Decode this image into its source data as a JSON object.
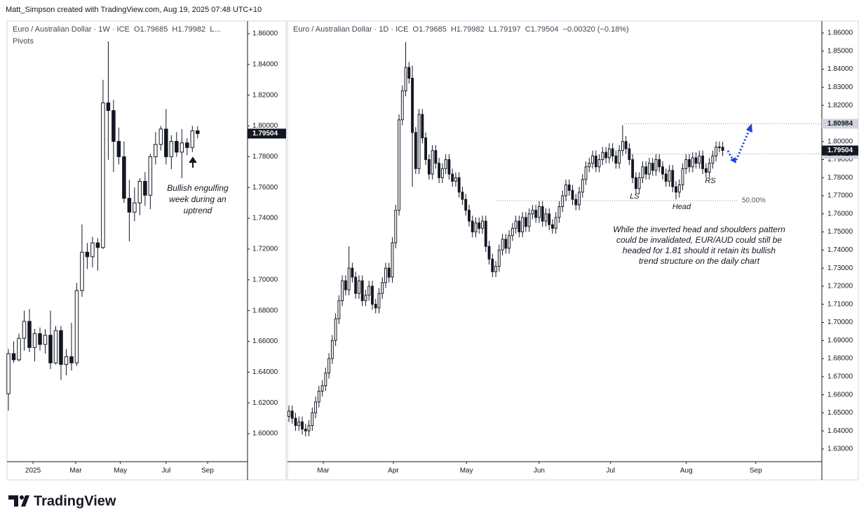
{
  "header": {
    "text": "Matt_Simpson created with TradingView.com, Aug 19, 2025 07:48 UTC+10"
  },
  "footer": {
    "brand": "TradingView"
  },
  "chart_data": [
    {
      "type": "candlestick",
      "title": "Euro / Australian Dollar · 1W · ICE  O1.79685  H1.79982  L...",
      "subtitle": "Pivots",
      "colors": {
        "up": "#ffffff",
        "down": "#131722",
        "wick": "#131722"
      },
      "xlim": [
        -0.27,
        45.5
      ],
      "xticks": [
        {
          "value": 4.67,
          "label": "2025"
        },
        {
          "value": 12.8,
          "label": "Mar"
        },
        {
          "value": 21.3,
          "label": "May"
        },
        {
          "value": 30,
          "label": "Jul"
        },
        {
          "value": 37.9,
          "label": "Sep"
        }
      ],
      "ylim": [
        1.5818,
        1.8682
      ],
      "yticks": [
        {
          "value": 1.6,
          "label": "1.60000"
        },
        {
          "value": 1.62,
          "label": "1.62000"
        },
        {
          "value": 1.64,
          "label": "1.64000"
        },
        {
          "value": 1.66,
          "label": "1.66000"
        },
        {
          "value": 1.68,
          "label": "1.68000"
        },
        {
          "value": 1.7,
          "label": "1.70000"
        },
        {
          "value": 1.72,
          "label": "1.72000"
        },
        {
          "value": 1.74,
          "label": "1.74000"
        },
        {
          "value": 1.76,
          "label": "1.76000"
        },
        {
          "value": 1.78,
          "label": "1.78000"
        },
        {
          "value": 1.8,
          "label": "1.80000"
        },
        {
          "value": 1.82,
          "label": "1.82000"
        },
        {
          "value": 1.84,
          "label": "1.84000"
        },
        {
          "value": 1.86,
          "label": "1.86000"
        }
      ],
      "open": [
        1.626,
        1.652,
        1.648,
        1.662,
        1.673,
        1.656,
        1.665,
        1.658,
        1.664,
        1.646,
        1.667,
        1.645,
        1.65,
        1.646,
        1.693,
        1.718,
        1.715,
        1.724,
        1.721,
        1.815,
        1.81,
        1.79,
        1.78,
        1.753,
        1.744,
        1.75,
        1.764,
        1.755,
        1.78,
        1.788,
        1.798,
        1.78,
        1.79,
        1.783,
        1.789,
        1.786,
        1.79685
      ],
      "high": [
        1.655,
        1.66,
        1.665,
        1.68,
        1.681,
        1.668,
        1.669,
        1.668,
        1.68,
        1.67,
        1.67,
        1.655,
        1.672,
        1.698,
        1.736,
        1.724,
        1.728,
        1.727,
        1.83,
        1.855,
        1.817,
        1.799,
        1.79,
        1.765,
        1.76,
        1.766,
        1.77,
        1.782,
        1.796,
        1.8,
        1.811,
        1.794,
        1.796,
        1.798,
        1.792,
        1.8,
        1.79982
      ],
      "low": [
        1.615,
        1.646,
        1.647,
        1.654,
        1.653,
        1.647,
        1.654,
        1.652,
        1.642,
        1.645,
        1.635,
        1.638,
        1.641,
        1.644,
        1.689,
        1.707,
        1.708,
        1.706,
        1.72,
        1.778,
        1.77,
        1.775,
        1.75,
        1.725,
        1.738,
        1.742,
        1.748,
        1.746,
        1.775,
        1.784,
        1.775,
        1.772,
        1.78,
        1.766,
        1.781,
        1.783,
        1.79197
      ],
      "close": [
        1.652,
        1.648,
        1.662,
        1.673,
        1.656,
        1.665,
        1.658,
        1.664,
        1.646,
        1.667,
        1.645,
        1.65,
        1.646,
        1.693,
        1.718,
        1.715,
        1.724,
        1.721,
        1.815,
        1.81,
        1.79,
        1.78,
        1.753,
        1.744,
        1.75,
        1.764,
        1.755,
        1.78,
        1.788,
        1.798,
        1.78,
        1.79,
        1.783,
        1.789,
        1.786,
        1.79685,
        1.79504
      ],
      "annotations": [
        "Bullish engulfing",
        "week during an",
        "uptrend"
      ]
    },
    {
      "type": "candlestick",
      "title": "Euro / Australian Dollar · 1D · ICE  O1.79685  H1.79982  L1.79197  C1.79504  −0.00320 (−0.18%)",
      "colors": {
        "up": "#ffffff",
        "down": "#131722",
        "wick": "#131722",
        "arrow": "#1e3fe0"
      },
      "xlim": [
        -0.42,
        159.7
      ],
      "xticks": [
        {
          "value": 10.3,
          "label": "Mar"
        },
        {
          "value": 31.3,
          "label": "Apr"
        },
        {
          "value": 53.2,
          "label": "May"
        },
        {
          "value": 75.0,
          "label": "Jun"
        },
        {
          "value": 96.4,
          "label": "Jul"
        },
        {
          "value": 119.1,
          "label": "Aug"
        },
        {
          "value": 139.9,
          "label": "Sep"
        }
      ],
      "ylim": [
        1.623,
        1.8666
      ],
      "yticks": [
        {
          "value": 1.63,
          "label": "1.63000"
        },
        {
          "value": 1.64,
          "label": "1.64000"
        },
        {
          "value": 1.65,
          "label": "1.65000"
        },
        {
          "value": 1.66,
          "label": "1.66000"
        },
        {
          "value": 1.67,
          "label": "1.67000"
        },
        {
          "value": 1.68,
          "label": "1.68000"
        },
        {
          "value": 1.69,
          "label": "1.69000"
        },
        {
          "value": 1.7,
          "label": "1.70000"
        },
        {
          "value": 1.71,
          "label": "1.71000"
        },
        {
          "value": 1.72,
          "label": "1.72000"
        },
        {
          "value": 1.73,
          "label": "1.73000"
        },
        {
          "value": 1.74,
          "label": "1.74000"
        },
        {
          "value": 1.75,
          "label": "1.75000"
        },
        {
          "value": 1.76,
          "label": "1.76000"
        },
        {
          "value": 1.77,
          "label": "1.77000"
        },
        {
          "value": 1.78,
          "label": "1.78000"
        },
        {
          "value": 1.79,
          "label": "1.79000"
        },
        {
          "value": 1.8,
          "label": "1.80000"
        },
        {
          "value": 1.81,
          "label": "1.81000"
        },
        {
          "value": 1.82,
          "label": "1.82000"
        },
        {
          "value": 1.83,
          "label": "1.83000"
        },
        {
          "value": 1.84,
          "label": "1.84000"
        },
        {
          "value": 1.85,
          "label": "1.85000"
        },
        {
          "value": 1.86,
          "label": "1.86000"
        }
      ],
      "open": [
        1.648,
        1.651,
        1.647,
        1.643,
        1.645,
        1.641,
        1.64,
        1.643,
        1.65,
        1.656,
        1.662,
        1.665,
        1.672,
        1.68,
        1.69,
        1.702,
        1.712,
        1.723,
        1.718,
        1.73,
        1.725,
        1.716,
        1.723,
        1.712,
        1.715,
        1.72,
        1.71,
        1.708,
        1.716,
        1.722,
        1.73,
        1.725,
        1.744,
        1.762,
        1.812,
        1.828,
        1.841,
        1.835,
        1.805,
        1.785,
        1.815,
        1.802,
        1.79,
        1.782,
        1.795,
        1.788,
        1.78,
        1.785,
        1.79,
        1.782,
        1.778,
        1.78,
        1.772,
        1.768,
        1.762,
        1.756,
        1.75,
        1.755,
        1.752,
        1.756,
        1.742,
        1.735,
        1.728,
        1.731,
        1.74,
        1.746,
        1.741,
        1.748,
        1.752,
        1.756,
        1.75,
        1.758,
        1.753,
        1.76,
        1.762,
        1.758,
        1.764,
        1.756,
        1.76,
        1.754,
        1.752,
        1.758,
        1.764,
        1.77,
        1.776,
        1.773,
        1.768,
        1.765,
        1.772,
        1.779,
        1.786,
        1.788,
        1.792,
        1.786,
        1.79,
        1.794,
        1.791,
        1.796,
        1.792,
        1.788,
        1.795,
        1.8,
        1.796,
        1.79,
        1.78,
        1.774,
        1.78,
        1.786,
        1.782,
        1.788,
        1.784,
        1.79,
        1.786,
        1.782,
        1.778,
        1.784,
        1.775,
        1.772,
        1.776,
        1.785,
        1.79,
        1.786,
        1.791,
        1.788,
        1.792,
        1.785,
        1.783,
        1.788,
        1.792,
        1.797,
        1.79685
      ],
      "high": [
        1.654,
        1.654,
        1.65,
        1.648,
        1.648,
        1.644,
        1.646,
        1.653,
        1.659,
        1.665,
        1.668,
        1.675,
        1.683,
        1.693,
        1.705,
        1.715,
        1.726,
        1.726,
        1.742,
        1.733,
        1.728,
        1.726,
        1.726,
        1.718,
        1.723,
        1.723,
        1.713,
        1.719,
        1.725,
        1.733,
        1.733,
        1.747,
        1.765,
        1.815,
        1.831,
        1.855,
        1.844,
        1.842,
        1.808,
        1.818,
        1.818,
        1.805,
        1.793,
        1.798,
        1.798,
        1.791,
        1.788,
        1.793,
        1.793,
        1.785,
        1.783,
        1.783,
        1.775,
        1.771,
        1.765,
        1.759,
        1.758,
        1.758,
        1.759,
        1.759,
        1.745,
        1.738,
        1.734,
        1.743,
        1.749,
        1.749,
        1.751,
        1.755,
        1.759,
        1.759,
        1.761,
        1.761,
        1.763,
        1.765,
        1.765,
        1.767,
        1.767,
        1.763,
        1.763,
        1.757,
        1.761,
        1.767,
        1.773,
        1.779,
        1.779,
        1.776,
        1.771,
        1.775,
        1.782,
        1.789,
        1.791,
        1.795,
        1.795,
        1.793,
        1.797,
        1.797,
        1.799,
        1.799,
        1.795,
        1.798,
        1.809,
        1.803,
        1.799,
        1.793,
        1.783,
        1.783,
        1.789,
        1.789,
        1.791,
        1.791,
        1.793,
        1.793,
        1.789,
        1.785,
        1.787,
        1.787,
        1.778,
        1.779,
        1.788,
        1.793,
        1.793,
        1.794,
        1.794,
        1.795,
        1.795,
        1.788,
        1.791,
        1.795,
        1.8,
        1.8,
        1.79982
      ],
      "low": [
        1.645,
        1.644,
        1.64,
        1.64,
        1.638,
        1.637,
        1.637,
        1.64,
        1.647,
        1.653,
        1.659,
        1.662,
        1.669,
        1.677,
        1.687,
        1.699,
        1.709,
        1.715,
        1.715,
        1.722,
        1.713,
        1.713,
        1.709,
        1.709,
        1.712,
        1.707,
        1.705,
        1.705,
        1.713,
        1.719,
        1.722,
        1.722,
        1.741,
        1.759,
        1.809,
        1.825,
        1.832,
        1.775,
        1.782,
        1.782,
        1.799,
        1.787,
        1.779,
        1.779,
        1.785,
        1.777,
        1.777,
        1.782,
        1.779,
        1.775,
        1.775,
        1.769,
        1.765,
        1.759,
        1.753,
        1.747,
        1.747,
        1.749,
        1.749,
        1.739,
        1.732,
        1.725,
        1.725,
        1.728,
        1.737,
        1.738,
        1.738,
        1.745,
        1.749,
        1.747,
        1.747,
        1.75,
        1.75,
        1.757,
        1.755,
        1.755,
        1.753,
        1.753,
        1.751,
        1.749,
        1.749,
        1.755,
        1.761,
        1.767,
        1.77,
        1.765,
        1.762,
        1.762,
        1.769,
        1.776,
        1.783,
        1.785,
        1.783,
        1.783,
        1.787,
        1.788,
        1.788,
        1.789,
        1.785,
        1.785,
        1.792,
        1.793,
        1.787,
        1.777,
        1.771,
        1.771,
        1.777,
        1.779,
        1.779,
        1.781,
        1.781,
        1.783,
        1.779,
        1.775,
        1.775,
        1.772,
        1.768,
        1.769,
        1.773,
        1.782,
        1.783,
        1.783,
        1.785,
        1.785,
        1.782,
        1.78,
        1.78,
        1.785,
        1.789,
        1.794,
        1.79197
      ],
      "close": [
        1.651,
        1.647,
        1.643,
        1.645,
        1.641,
        1.64,
        1.643,
        1.65,
        1.656,
        1.662,
        1.665,
        1.672,
        1.68,
        1.69,
        1.702,
        1.712,
        1.723,
        1.718,
        1.73,
        1.725,
        1.716,
        1.723,
        1.712,
        1.715,
        1.72,
        1.71,
        1.708,
        1.716,
        1.722,
        1.73,
        1.725,
        1.744,
        1.762,
        1.812,
        1.828,
        1.841,
        1.835,
        1.805,
        1.785,
        1.815,
        1.802,
        1.79,
        1.782,
        1.795,
        1.788,
        1.78,
        1.785,
        1.79,
        1.782,
        1.778,
        1.78,
        1.772,
        1.768,
        1.762,
        1.756,
        1.75,
        1.755,
        1.752,
        1.756,
        1.742,
        1.735,
        1.728,
        1.731,
        1.74,
        1.746,
        1.741,
        1.748,
        1.752,
        1.756,
        1.75,
        1.758,
        1.753,
        1.76,
        1.762,
        1.758,
        1.764,
        1.756,
        1.76,
        1.754,
        1.752,
        1.758,
        1.764,
        1.77,
        1.776,
        1.773,
        1.768,
        1.765,
        1.772,
        1.779,
        1.786,
        1.788,
        1.792,
        1.786,
        1.79,
        1.794,
        1.791,
        1.796,
        1.792,
        1.788,
        1.795,
        1.8,
        1.796,
        1.79,
        1.78,
        1.774,
        1.78,
        1.786,
        1.782,
        1.788,
        1.784,
        1.79,
        1.786,
        1.782,
        1.778,
        1.784,
        1.775,
        1.772,
        1.776,
        1.785,
        1.79,
        1.786,
        1.791,
        1.788,
        1.792,
        1.785,
        1.783,
        1.788,
        1.792,
        1.797,
        1.79685,
        1.79504
      ],
      "levels": [
        1.80984,
        1.79314
      ],
      "fib_level": {
        "value": 1.7673,
        "label": "50.00%"
      },
      "pattern_labels": [
        "LS",
        "Head",
        "RS"
      ],
      "annotations": [
        "While the inverted head and shoulders pattern",
        "could be invalidated, EUR/AUD could still be",
        "headed for 1.81 should it retain its bullish",
        "trend structure on the daily chart"
      ]
    }
  ]
}
